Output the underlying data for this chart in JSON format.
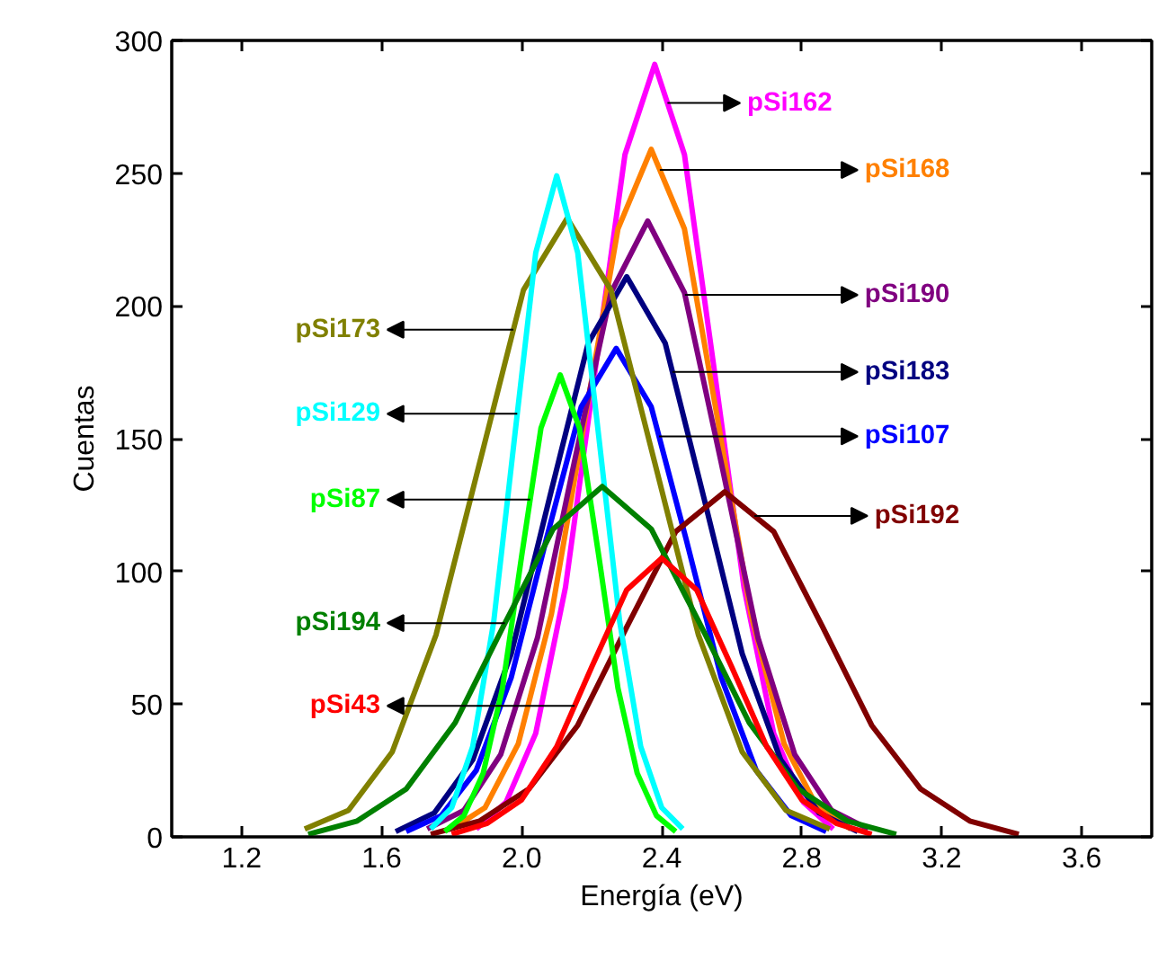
{
  "chart_data": {
    "type": "line",
    "xlabel": "Energía (eV)",
    "ylabel": "Cuentas",
    "xlim": [
      1.0,
      3.8
    ],
    "xticks": [
      1.2,
      1.6,
      {
        "value": 2,
        "label": "2.0"
      },
      2.4,
      2.8,
      3.2,
      3.6
    ],
    "ylim": [
      0,
      300
    ],
    "yticks": [
      0,
      50,
      100,
      150,
      200,
      250,
      300
    ],
    "grid": false,
    "series": [
      {
        "name": "pSi162",
        "color": "#ff00ff",
        "x": [
          1.87,
          1.955,
          2.04,
          2.125,
          2.21,
          2.295,
          2.38,
          2.465,
          2.55,
          2.635,
          2.72,
          2.805,
          2.89
        ],
        "values": [
          3,
          13,
          39,
          94,
          176,
          257,
          291,
          257,
          176,
          94,
          39,
          13,
          3
        ]
      },
      {
        "name": "pSi168",
        "color": "#ff8000",
        "x": [
          1.8,
          1.895,
          1.99,
          2.085,
          2.18,
          2.275,
          2.37,
          2.465,
          2.56,
          2.655,
          2.75,
          2.845,
          2.94
        ],
        "values": [
          3,
          11,
          35,
          84,
          157,
          229,
          259,
          229,
          157,
          84,
          35,
          11,
          3
        ]
      },
      {
        "name": "pSi190",
        "color": "#800080",
        "x": [
          1.73,
          1.835,
          1.94,
          2.045,
          2.15,
          2.255,
          2.36,
          2.465,
          2.57,
          2.675,
          2.78,
          2.885,
          2.99
        ],
        "values": [
          3,
          10,
          31,
          75,
          141,
          205,
          232,
          205,
          141,
          75,
          31,
          10,
          3
        ]
      },
      {
        "name": "pSi183",
        "color": "#000080",
        "x": [
          1.64,
          1.75,
          1.86,
          1.97,
          2.08,
          2.19,
          2.3,
          2.41,
          2.52,
          2.63,
          2.74,
          2.85,
          2.96
        ],
        "values": [
          2,
          9,
          29,
          69,
          128,
          186,
          211,
          186,
          128,
          69,
          29,
          9,
          2
        ]
      },
      {
        "name": "pSi107",
        "color": "#0000ff",
        "x": [
          1.67,
          1.77,
          1.87,
          1.97,
          2.07,
          2.17,
          2.27,
          2.37,
          2.47,
          2.57,
          2.67,
          2.77,
          2.87
        ],
        "values": [
          2,
          8,
          25,
          60,
          112,
          162,
          184,
          162,
          112,
          60,
          25,
          8,
          2
        ]
      },
      {
        "name": "pSi192",
        "color": "#800000",
        "x": [
          1.74,
          1.88,
          2.02,
          2.16,
          2.3,
          2.44,
          2.58,
          2.72,
          2.86,
          3.0,
          3.14,
          3.28,
          3.42
        ],
        "values": [
          1,
          6,
          18,
          42,
          79,
          115,
          130,
          115,
          79,
          42,
          18,
          6,
          1
        ]
      },
      {
        "name": "pSi173",
        "color": "#808000",
        "x": [
          1.38,
          1.505,
          1.63,
          1.755,
          1.88,
          2.005,
          2.13,
          2.255,
          2.38,
          2.505,
          2.63,
          2.755,
          2.88
        ],
        "values": [
          3,
          10,
          32,
          76,
          141,
          206,
          233,
          206,
          141,
          76,
          32,
          10,
          3
        ]
      },
      {
        "name": "pSi129",
        "color": "#00ffff",
        "x": [
          1.74,
          1.8,
          1.86,
          1.92,
          1.98,
          2.04,
          2.1,
          2.16,
          2.22,
          2.28,
          2.34,
          2.4,
          2.46
        ],
        "values": [
          3,
          11,
          34,
          81,
          151,
          220,
          249,
          220,
          151,
          81,
          34,
          11,
          3
        ]
      },
      {
        "name": "pSi87",
        "color": "#00ff00",
        "x": [
          1.78,
          1.835,
          1.89,
          1.945,
          2.0,
          2.055,
          2.11,
          2.165,
          2.22,
          2.275,
          2.33,
          2.385,
          2.44
        ],
        "values": [
          2,
          8,
          24,
          56,
          106,
          154,
          174,
          154,
          106,
          56,
          24,
          8,
          2
        ]
      },
      {
        "name": "pSi194",
        "color": "#008000",
        "x": [
          1.39,
          1.53,
          1.67,
          1.81,
          1.95,
          2.09,
          2.23,
          2.37,
          2.51,
          2.65,
          2.79,
          2.93,
          3.07
        ],
        "values": [
          1,
          6,
          18,
          43,
          80,
          116,
          132,
          116,
          80,
          43,
          18,
          6,
          1
        ]
      },
      {
        "name": "pSi43",
        "color": "#ff0000",
        "x": [
          1.8,
          1.9,
          2.0,
          2.1,
          2.2,
          2.3,
          2.4,
          2.5,
          2.6,
          2.7,
          2.8,
          2.9,
          3.0
        ],
        "values": [
          1,
          5,
          14,
          34,
          64,
          93,
          105,
          93,
          64,
          34,
          14,
          5,
          1
        ]
      }
    ]
  }
}
